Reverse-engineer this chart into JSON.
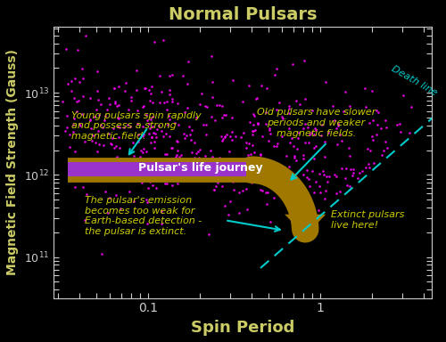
{
  "title": "Normal Pulsars",
  "xlabel": "Spin Period",
  "ylabel": "Magnetic Field Strength (Gauss)",
  "bg_color": "#000000",
  "title_color": "#cccc66",
  "label_color": "#cccc66",
  "tick_color": "#cccccc",
  "dot_color": "#ff00ff",
  "arrow_color": "#a07800",
  "death_line_color": "#00cccc",
  "life_journey_box_color": "#9933cc",
  "life_journey_text_color": "#ffffff",
  "annotation_color": "#cccc00",
  "annotation_arrow_color": "#00cccc",
  "xlim_log": [
    -1.55,
    0.65
  ],
  "ylim_log": [
    10.5,
    13.8
  ],
  "xlabel_fontsize": 13,
  "ylabel_fontsize": 10,
  "title_fontsize": 14,
  "seed": 77,
  "n_pulsars": 500
}
